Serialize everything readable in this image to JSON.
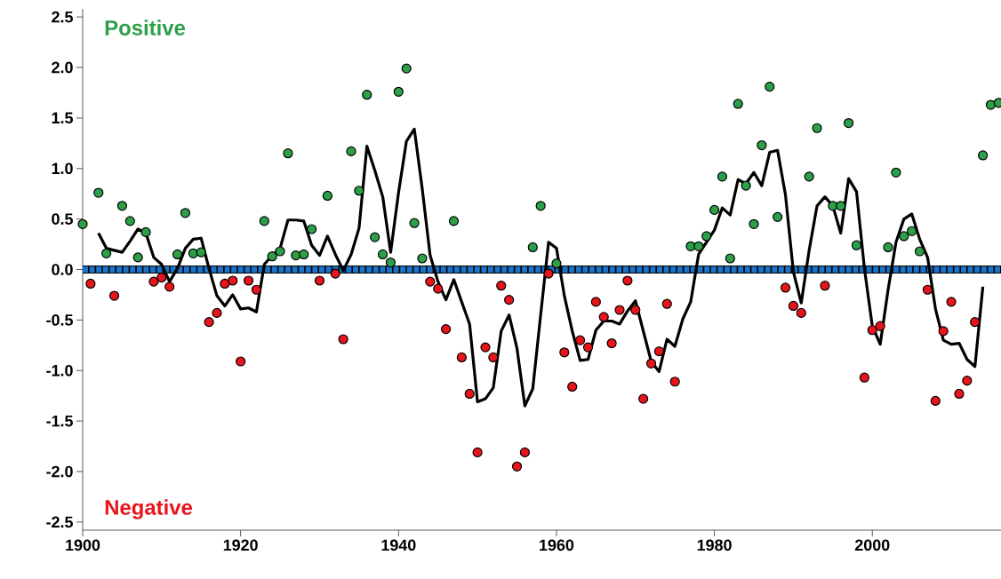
{
  "chart_data": {
    "type": "scatter",
    "x": [
      1902,
      1903,
      1904,
      1905,
      1906,
      1907,
      1908,
      1909,
      1910,
      1911,
      1912,
      1913,
      1914,
      1915,
      1916,
      1917,
      1918,
      1919,
      1920,
      1921,
      1922,
      1923,
      1924,
      1925,
      1926,
      1927,
      1928,
      1929,
      1930,
      1931,
      1932,
      1933,
      1934,
      1935,
      1936,
      1937,
      1938,
      1939,
      1940,
      1941,
      1942,
      1943,
      1944,
      1945,
      1946,
      1947,
      1948,
      1949,
      1950,
      1951,
      1952,
      1953,
      1954,
      1955,
      1956,
      1957,
      1958,
      1959,
      1960,
      1961,
      1962,
      1963,
      1964,
      1965,
      1966,
      1967,
      1968,
      1969,
      1970,
      1971,
      1972,
      1973,
      1974,
      1975,
      1976,
      1977,
      1978,
      1979,
      1980,
      1981,
      1982,
      1983,
      1984,
      1985,
      1986,
      1987,
      1988,
      1989,
      1990,
      1991,
      1992,
      1993,
      1994,
      1995,
      1996,
      1997,
      1998,
      1999,
      2000,
      2001,
      2002,
      2003,
      2004,
      2005,
      2006,
      2007,
      2008,
      2009,
      2010,
      2011,
      2012,
      2013,
      2014
    ],
    "series": [
      {
        "name": "Positive",
        "color": "#2ca048",
        "marker": "circle",
        "x": [
          1900,
          1902,
          1903,
          1905,
          1906,
          1907,
          1908,
          1912,
          1913,
          1914,
          1915,
          1923,
          1924,
          1925,
          1926,
          1927,
          1928,
          1929,
          1931,
          1934,
          1935,
          1936,
          1937,
          1938,
          1939,
          1940,
          1941,
          1942,
          1943,
          1947,
          1957,
          1958,
          1960,
          1977,
          1978,
          1979,
          1980,
          1981,
          1982,
          1983,
          1984,
          1985,
          1986,
          1987,
          1988,
          1992,
          1993,
          1995,
          1996,
          1997,
          1998,
          2002,
          2003,
          2004,
          2005,
          2006,
          2014,
          2015,
          2016
        ],
        "values": [
          0.45,
          0.76,
          0.16,
          0.63,
          0.48,
          0.12,
          0.37,
          0.15,
          0.56,
          0.16,
          0.17,
          0.48,
          0.13,
          0.18,
          1.15,
          0.14,
          0.15,
          0.4,
          0.73,
          1.17,
          0.78,
          1.73,
          0.32,
          0.15,
          0.07,
          1.76,
          1.99,
          0.46,
          0.11,
          0.48,
          0.22,
          0.63,
          0.06,
          0.23,
          0.23,
          0.33,
          0.59,
          0.92,
          0.11,
          1.64,
          0.83,
          0.45,
          1.23,
          1.81,
          0.52,
          0.92,
          1.4,
          0.63,
          0.63,
          1.45,
          0.24,
          0.22,
          0.96,
          0.33,
          0.38,
          0.18,
          1.13,
          1.63,
          1.65
        ]
      },
      {
        "name": "Negative",
        "color": "#e8141c",
        "marker": "circle",
        "x": [
          1901,
          1904,
          1909,
          1910,
          1911,
          1916,
          1917,
          1918,
          1919,
          1920,
          1921,
          1922,
          1930,
          1932,
          1933,
          1944,
          1945,
          1946,
          1948,
          1949,
          1950,
          1951,
          1952,
          1953,
          1954,
          1955,
          1956,
          1959,
          1961,
          1962,
          1963,
          1964,
          1965,
          1966,
          1967,
          1968,
          1969,
          1970,
          1971,
          1972,
          1973,
          1974,
          1975,
          1989,
          1990,
          1991,
          1994,
          1999,
          2000,
          2001,
          2007,
          2008,
          2009,
          2010,
          2011,
          2012,
          2013
        ],
        "values": [
          -0.14,
          -0.26,
          -0.12,
          -0.08,
          -0.17,
          -0.52,
          -0.43,
          -0.14,
          -0.11,
          -0.91,
          -0.11,
          -0.2,
          -0.11,
          -0.04,
          -0.69,
          -0.12,
          -0.19,
          -0.59,
          -0.87,
          -1.23,
          -1.81,
          -0.77,
          -0.87,
          -0.16,
          -0.3,
          -1.95,
          -1.81,
          -0.04,
          -0.82,
          -1.16,
          -0.7,
          -0.77,
          -0.32,
          -0.47,
          -0.73,
          -0.4,
          -0.11,
          -0.4,
          -1.28,
          -0.93,
          -0.81,
          -0.34,
          -1.11,
          -0.18,
          -0.36,
          -0.43,
          -0.16,
          -1.07,
          -0.6,
          -0.56,
          -0.2,
          -1.3,
          -0.61,
          -0.32,
          -1.23,
          -1.1,
          -0.52
        ]
      },
      {
        "type": "line",
        "color": "#000000",
        "marker": "none",
        "values": [
          0.36,
          0.21,
          0.19,
          0.17,
          0.28,
          0.4,
          0.36,
          0.12,
          0.05,
          -0.12,
          0.01,
          0.21,
          0.3,
          0.31,
          0.01,
          -0.26,
          -0.36,
          -0.25,
          -0.39,
          -0.38,
          -0.42,
          0.05,
          0.14,
          0.21,
          0.49,
          0.49,
          0.48,
          0.24,
          0.14,
          0.33,
          0.15,
          -0.01,
          0.15,
          0.41,
          1.22,
          0.98,
          0.72,
          0.17,
          0.76,
          1.27,
          1.39,
          0.8,
          0.14,
          -0.12,
          -0.3,
          -0.1,
          -0.32,
          -0.54,
          -1.31,
          -1.28,
          -1.17,
          -0.61,
          -0.45,
          -0.78,
          -1.35,
          -1.18,
          -0.45,
          0.27,
          0.21,
          -0.26,
          -0.61,
          -0.9,
          -0.89,
          -0.6,
          -0.51,
          -0.51,
          -0.54,
          -0.41,
          -0.31,
          -0.61,
          -0.91,
          -1.01,
          -0.69,
          -0.76,
          -0.49,
          -0.32,
          0.15,
          0.27,
          0.39,
          0.61,
          0.54,
          0.89,
          0.85,
          0.96,
          0.83,
          1.16,
          1.18,
          0.74,
          -0.02,
          -0.33,
          0.19,
          0.63,
          0.72,
          0.63,
          0.36,
          0.9,
          0.77,
          0.01,
          -0.56,
          -0.74,
          -0.2,
          0.27,
          0.5,
          0.55,
          0.3,
          0.12,
          -0.39,
          -0.7,
          -0.74,
          -0.73,
          -0.89,
          -0.96,
          -0.17
        ]
      }
    ],
    "xlim": [
      1900,
      2016.3
    ],
    "ylim": [
      -2.58,
      2.58
    ],
    "xticks": [
      1900,
      1920,
      1940,
      1960,
      1980,
      2000
    ],
    "yticks": [
      {
        "value": -2.5,
        "label": "-2.5"
      },
      {
        "value": -2,
        "label": "-2.0"
      },
      {
        "value": -1.5,
        "label": "-1.5"
      },
      {
        "value": -1,
        "label": "-1.0"
      },
      {
        "value": -0.5,
        "label": "-0.5"
      },
      {
        "value": 0,
        "label": "0.0"
      },
      {
        "value": 0.5,
        "label": "0.5"
      },
      {
        "value": 1,
        "label": "1.0"
      },
      {
        "value": 1.5,
        "label": "1.5"
      },
      {
        "value": 2,
        "label": "2.0"
      },
      {
        "value": 2.5,
        "label": "2.5"
      }
    ],
    "ref_lines": [
      {
        "axis": "y",
        "value": 0,
        "color": "#1a73c8",
        "line_style": "dashed"
      }
    ]
  }
}
